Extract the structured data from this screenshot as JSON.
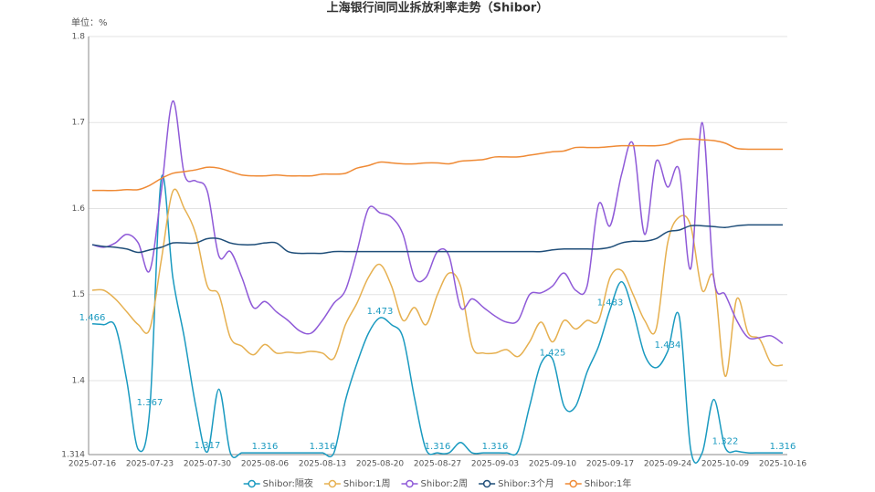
{
  "chart_data": {
    "type": "line",
    "title": "上海银行间同业拆放利率走势（Shibor）",
    "y_unit": "单位：%",
    "categories": [
      "2025-07-16",
      null,
      null,
      null,
      null,
      "2025-07-23",
      null,
      null,
      null,
      null,
      "2025-07-30",
      null,
      null,
      null,
      null,
      "2025-08-06",
      null,
      null,
      null,
      null,
      "2025-08-13",
      null,
      null,
      null,
      null,
      "2025-08-20",
      null,
      null,
      null,
      null,
      "2025-08-27",
      null,
      null,
      null,
      null,
      "2025-09-03",
      null,
      null,
      null,
      null,
      "2025-09-10",
      null,
      null,
      null,
      null,
      "2025-09-17",
      null,
      null,
      null,
      null,
      "2025-09-24",
      null,
      null,
      null,
      null,
      "2025-10-09",
      null,
      null,
      null,
      null,
      "2025-10-16"
    ],
    "ylim": [
      1.314,
      1.8
    ],
    "yticks": [
      1.314,
      1.4,
      1.5,
      1.6,
      1.7,
      1.8
    ],
    "grid": true,
    "smooth": true,
    "legend": "bottom",
    "series": [
      {
        "name": "Shibor:隔夜",
        "color": "#1a9ac0",
        "label_interval": 5,
        "values": [
          1.466,
          1.465,
          1.463,
          1.4,
          1.32,
          1.367,
          1.635,
          1.52,
          1.45,
          1.37,
          1.317,
          1.39,
          1.316,
          1.316,
          1.316,
          1.316,
          1.316,
          1.316,
          1.316,
          1.316,
          1.316,
          1.316,
          1.377,
          1.42,
          1.455,
          1.473,
          1.465,
          1.45,
          1.38,
          1.32,
          1.316,
          1.316,
          1.328,
          1.316,
          1.316,
          1.316,
          1.316,
          1.318,
          1.37,
          1.42,
          1.425,
          1.37,
          1.37,
          1.41,
          1.44,
          1.483,
          1.515,
          1.48,
          1.43,
          1.415,
          1.434,
          1.475,
          1.32,
          1.316,
          1.378,
          1.322,
          1.318,
          1.316,
          1.316,
          1.316,
          1.316
        ]
      },
      {
        "name": "Shibor:1周",
        "color": "#e6b050",
        "values": [
          1.505,
          1.505,
          1.495,
          1.48,
          1.465,
          1.46,
          1.54,
          1.62,
          1.6,
          1.57,
          1.51,
          1.5,
          1.45,
          1.44,
          1.43,
          1.442,
          1.432,
          1.433,
          1.432,
          1.434,
          1.432,
          1.426,
          1.465,
          1.49,
          1.52,
          1.535,
          1.51,
          1.47,
          1.485,
          1.465,
          1.5,
          1.525,
          1.51,
          1.44,
          1.432,
          1.432,
          1.436,
          1.428,
          1.445,
          1.468,
          1.445,
          1.47,
          1.46,
          1.47,
          1.47,
          1.52,
          1.528,
          1.5,
          1.47,
          1.46,
          1.56,
          1.59,
          1.58,
          1.505,
          1.52,
          1.405,
          1.495,
          1.455,
          1.448,
          1.42,
          1.418
        ]
      },
      {
        "name": "Shibor:2周",
        "color": "#8f5ad8",
        "values": [
          1.558,
          1.555,
          1.56,
          1.57,
          1.56,
          1.528,
          1.62,
          1.725,
          1.64,
          1.632,
          1.62,
          1.545,
          1.55,
          1.52,
          1.485,
          1.492,
          1.48,
          1.47,
          1.458,
          1.455,
          1.47,
          1.49,
          1.505,
          1.55,
          1.6,
          1.595,
          1.59,
          1.57,
          1.52,
          1.52,
          1.55,
          1.545,
          1.485,
          1.495,
          1.485,
          1.475,
          1.468,
          1.47,
          1.5,
          1.502,
          1.51,
          1.525,
          1.505,
          1.51,
          1.605,
          1.58,
          1.64,
          1.675,
          1.57,
          1.655,
          1.625,
          1.645,
          1.53,
          1.7,
          1.52,
          1.5,
          1.47,
          1.45,
          1.45,
          1.452,
          1.443
        ]
      },
      {
        "name": "Shibor:3个月",
        "color": "#1f4e79",
        "values": [
          1.558,
          1.556,
          1.555,
          1.553,
          1.549,
          1.552,
          1.555,
          1.56,
          1.56,
          1.56,
          1.565,
          1.565,
          1.56,
          1.558,
          1.558,
          1.56,
          1.56,
          1.55,
          1.548,
          1.548,
          1.548,
          1.55,
          1.55,
          1.55,
          1.55,
          1.55,
          1.55,
          1.55,
          1.55,
          1.55,
          1.55,
          1.55,
          1.55,
          1.55,
          1.55,
          1.55,
          1.55,
          1.55,
          1.55,
          1.55,
          1.552,
          1.553,
          1.553,
          1.553,
          1.553,
          1.555,
          1.56,
          1.562,
          1.562,
          1.565,
          1.573,
          1.575,
          1.58,
          1.58,
          1.579,
          1.578,
          1.58,
          1.581,
          1.581,
          1.581,
          1.581
        ]
      },
      {
        "name": "Shibor:1年",
        "color": "#ef8a35",
        "values": [
          1.621,
          1.621,
          1.621,
          1.622,
          1.622,
          1.627,
          1.635,
          1.641,
          1.643,
          1.645,
          1.648,
          1.647,
          1.643,
          1.639,
          1.638,
          1.638,
          1.639,
          1.638,
          1.638,
          1.638,
          1.64,
          1.64,
          1.641,
          1.647,
          1.65,
          1.654,
          1.653,
          1.652,
          1.652,
          1.653,
          1.653,
          1.652,
          1.655,
          1.656,
          1.657,
          1.66,
          1.66,
          1.66,
          1.662,
          1.664,
          1.666,
          1.667,
          1.671,
          1.671,
          1.671,
          1.672,
          1.673,
          1.673,
          1.673,
          1.673,
          1.675,
          1.68,
          1.681,
          1.68,
          1.679,
          1.676,
          1.67,
          1.669,
          1.669,
          1.669,
          1.669
        ]
      }
    ]
  }
}
